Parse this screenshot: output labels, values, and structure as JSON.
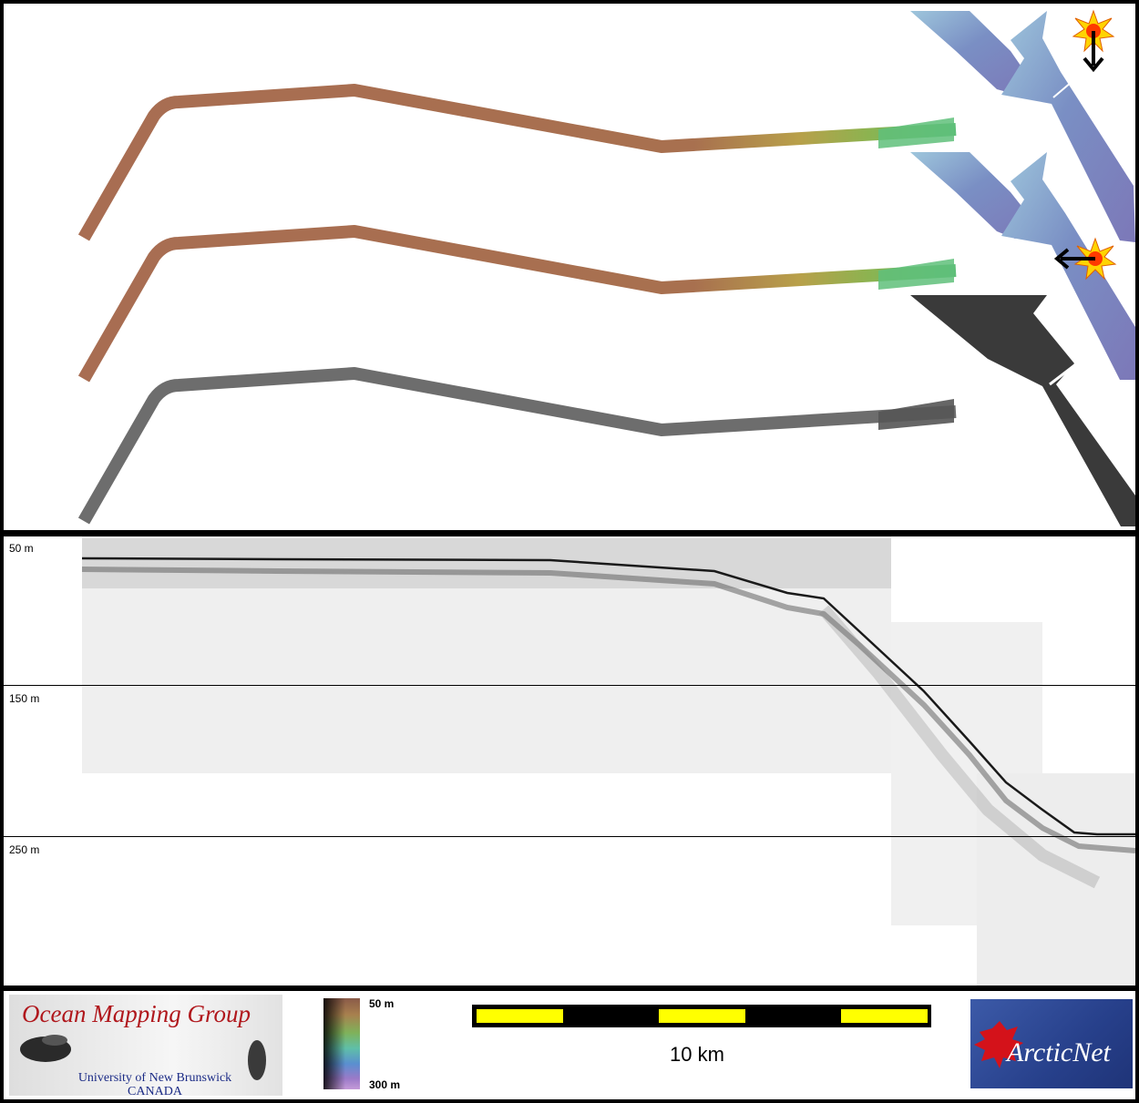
{
  "profile": {
    "depth_labels": [
      "50 m",
      "150 m",
      "250 m"
    ]
  },
  "legend": {
    "colorbar_top": "50 m",
    "colorbar_bottom": "300 m",
    "scale_bar_label": "10 km"
  },
  "logos": {
    "omg_title": "Ocean Mapping Group",
    "omg_university": "University of New Brunswick",
    "omg_country": "CANADA",
    "arcticnet_text": "ArcticNet"
  },
  "colors": {
    "track_brown": "#a86d52",
    "track_green": "#5fbf7a",
    "track_blue": "#7c83bd",
    "track_grey": "#707070",
    "scale_yellow": "#ffff00",
    "omg_red": "#b0171c",
    "arcticnet_blue": "#27408b"
  },
  "icons": [
    "sun-icon",
    "arrow-down-icon",
    "arrow-left-icon",
    "maple-leaf-icon"
  ]
}
